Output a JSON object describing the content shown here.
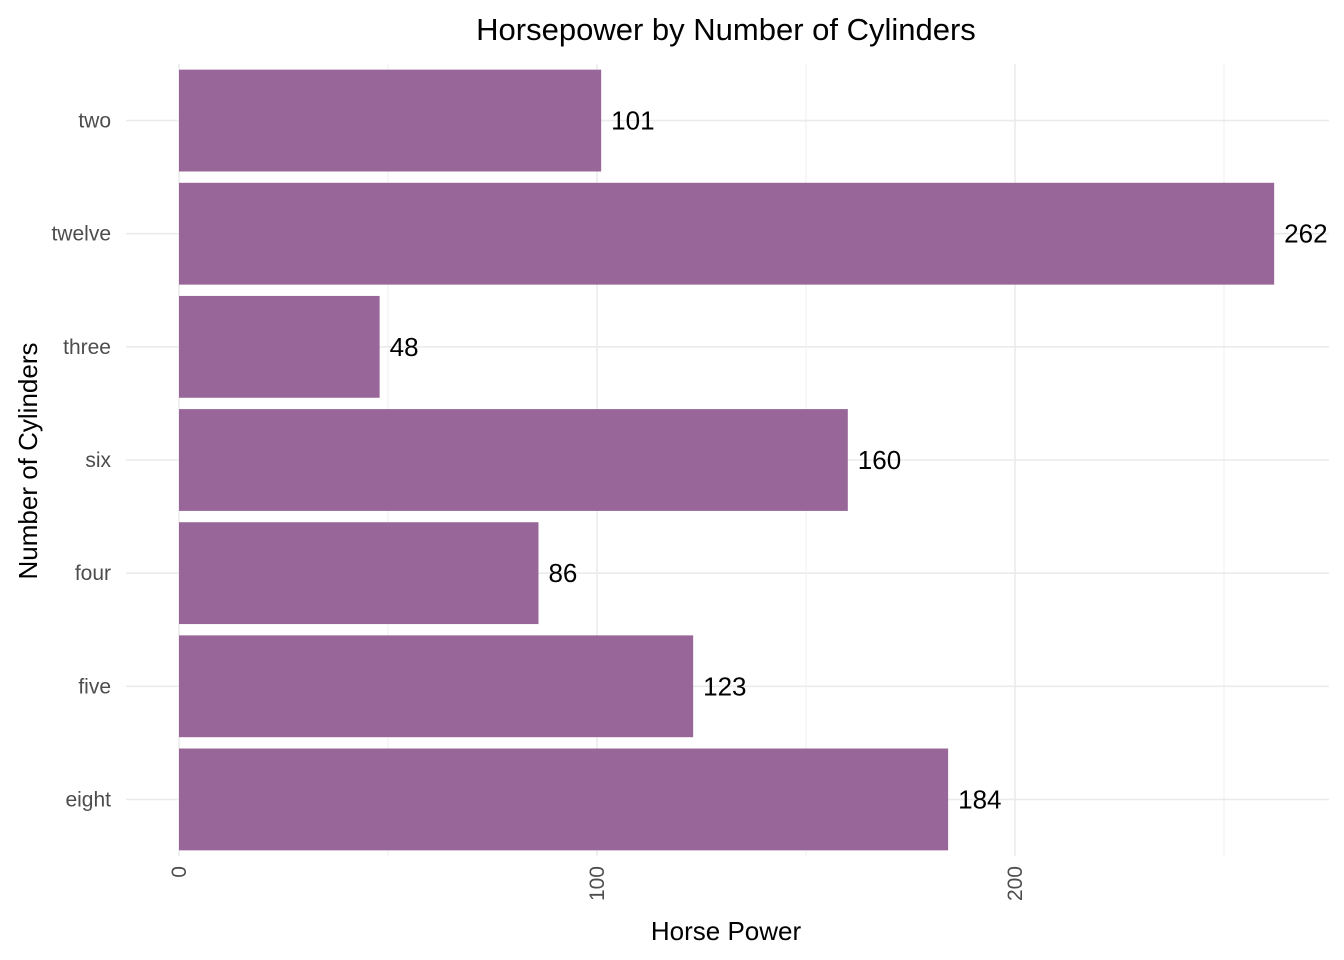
{
  "chart_data": {
    "type": "bar",
    "orientation": "horizontal",
    "title": "Horsepower by Number of Cylinders",
    "xlabel": "Horse Power",
    "ylabel": "Number of Cylinders",
    "categories": [
      "eight",
      "five",
      "four",
      "six",
      "three",
      "twelve",
      "two"
    ],
    "values": [
      184,
      123,
      86,
      160,
      48,
      262,
      101
    ],
    "data_labels": [
      "184",
      "123",
      "86",
      "160",
      "48",
      "262",
      "101"
    ],
    "x_ticks": [
      0,
      100,
      200
    ],
    "x_tick_labels": [
      "0",
      "100",
      "200"
    ],
    "xlim": [
      0,
      275
    ],
    "bar_color": "#996699",
    "grid": true,
    "legend": "none"
  }
}
